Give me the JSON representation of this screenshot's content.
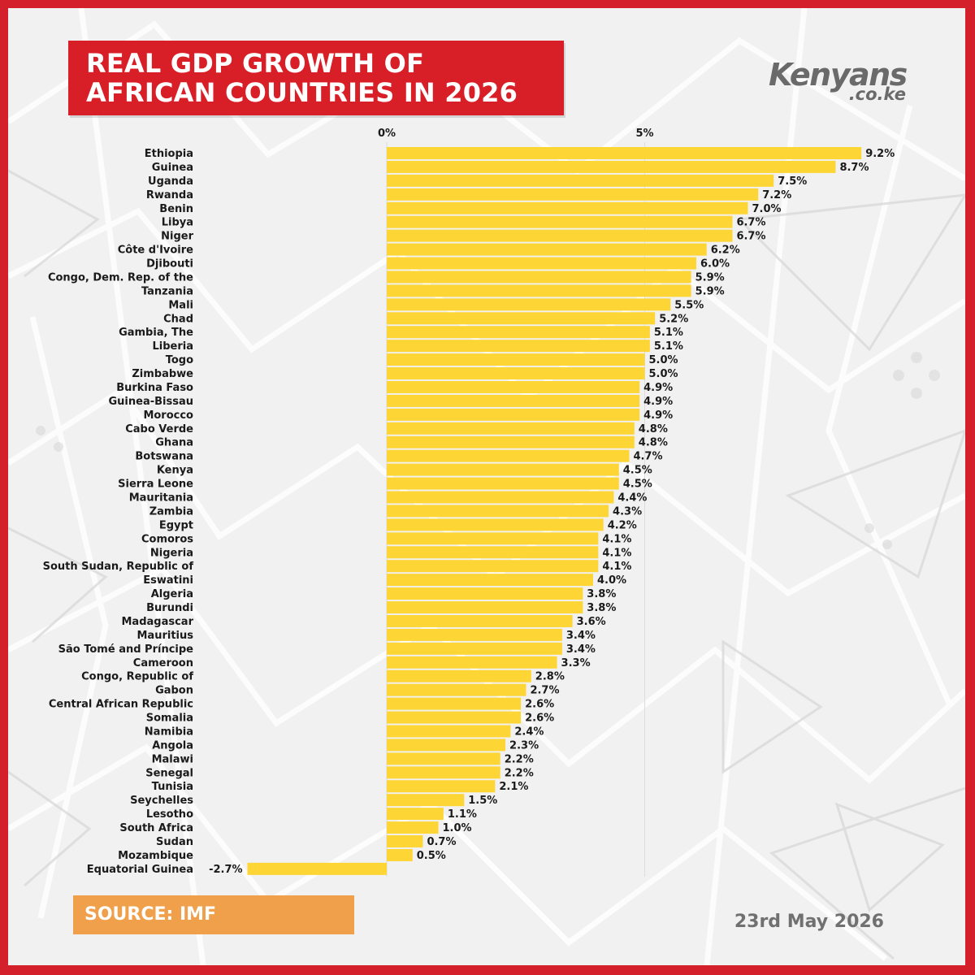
{
  "header": {
    "title": "REAL GDP GROWTH OF AFRICAN COUNTRIES IN 2026"
  },
  "logo": {
    "main": "Kenyans",
    "sub": ".co.ke"
  },
  "footer": {
    "source": "SOURCE: IMF",
    "date": "23rd May 2026"
  },
  "colors": {
    "background": "#f1f1f1",
    "frame": "#d4202a",
    "title_box": "#d81e27",
    "bar": "#fdd535",
    "source_box": "#f0a04b",
    "text": "#1a1a1a"
  },
  "chart_data": {
    "type": "bar",
    "orientation": "horizontal",
    "title": "REAL GDP GROWTH OF AFRICAN COUNTRIES IN 2026",
    "xlabel": "",
    "ylabel": "",
    "xlim": [
      -2.7,
      9.2
    ],
    "x_ticks": [
      0,
      5
    ],
    "x_tick_labels": [
      "0%",
      "5%"
    ],
    "grid": true,
    "legend": "none",
    "categories": [
      "Ethiopia",
      "Guinea",
      "Uganda",
      "Rwanda",
      "Benin",
      "Libya",
      "Niger",
      "Côte d'Ivoire",
      "Djibouti",
      "Congo, Dem. Rep. of the",
      "Tanzania",
      "Mali",
      "Chad",
      "Gambia, The",
      "Liberia",
      "Togo",
      "Zimbabwe",
      "Burkina Faso",
      "Guinea-Bissau",
      "Morocco",
      "Cabo Verde",
      "Ghana",
      "Botswana",
      "Kenya",
      "Sierra Leone",
      "Mauritania",
      "Zambia",
      "Egypt",
      "Comoros",
      "Nigeria",
      "South Sudan, Republic of",
      "Eswatini",
      "Algeria",
      "Burundi",
      "Madagascar",
      "Mauritius",
      "São Tomé and Príncipe",
      "Cameroon",
      "Congo, Republic of",
      "Gabon",
      "Central African Republic",
      "Somalia",
      "Namibia",
      "Angola",
      "Malawi",
      "Senegal",
      "Tunisia",
      "Seychelles",
      "Lesotho",
      "South Africa",
      "Sudan",
      "Mozambique",
      "Equatorial Guinea"
    ],
    "values": [
      9.2,
      8.7,
      7.5,
      7.2,
      7.0,
      6.7,
      6.7,
      6.2,
      6.0,
      5.9,
      5.9,
      5.5,
      5.2,
      5.1,
      5.1,
      5.0,
      5.0,
      4.9,
      4.9,
      4.9,
      4.8,
      4.8,
      4.7,
      4.5,
      4.5,
      4.4,
      4.3,
      4.2,
      4.1,
      4.1,
      4.1,
      4.0,
      3.8,
      3.8,
      3.6,
      3.4,
      3.4,
      3.3,
      2.8,
      2.7,
      2.6,
      2.6,
      2.4,
      2.3,
      2.2,
      2.2,
      2.1,
      1.5,
      1.1,
      1.0,
      0.7,
      0.5,
      -2.7
    ],
    "value_labels": [
      "9.2%",
      "8.7%",
      "7.5%",
      "7.2%",
      "7.0%",
      "6.7%",
      "6.7%",
      "6.2%",
      "6.0%",
      "5.9%",
      "5.9%",
      "5.5%",
      "5.2%",
      "5.1%",
      "5.1%",
      "5.0%",
      "5.0%",
      "4.9%",
      "4.9%",
      "4.9%",
      "4.8%",
      "4.8%",
      "4.7%",
      "4.5%",
      "4.5%",
      "4.4%",
      "4.3%",
      "4.2%",
      "4.1%",
      "4.1%",
      "4.1%",
      "4.0%",
      "3.8%",
      "3.8%",
      "3.6%",
      "3.4%",
      "3.4%",
      "3.3%",
      "2.8%",
      "2.7%",
      "2.6%",
      "2.6%",
      "2.4%",
      "2.3%",
      "2.2%",
      "2.2%",
      "2.1%",
      "1.5%",
      "1.1%",
      "1.0%",
      "0.7%",
      "0.5%",
      "-2.7%"
    ]
  }
}
